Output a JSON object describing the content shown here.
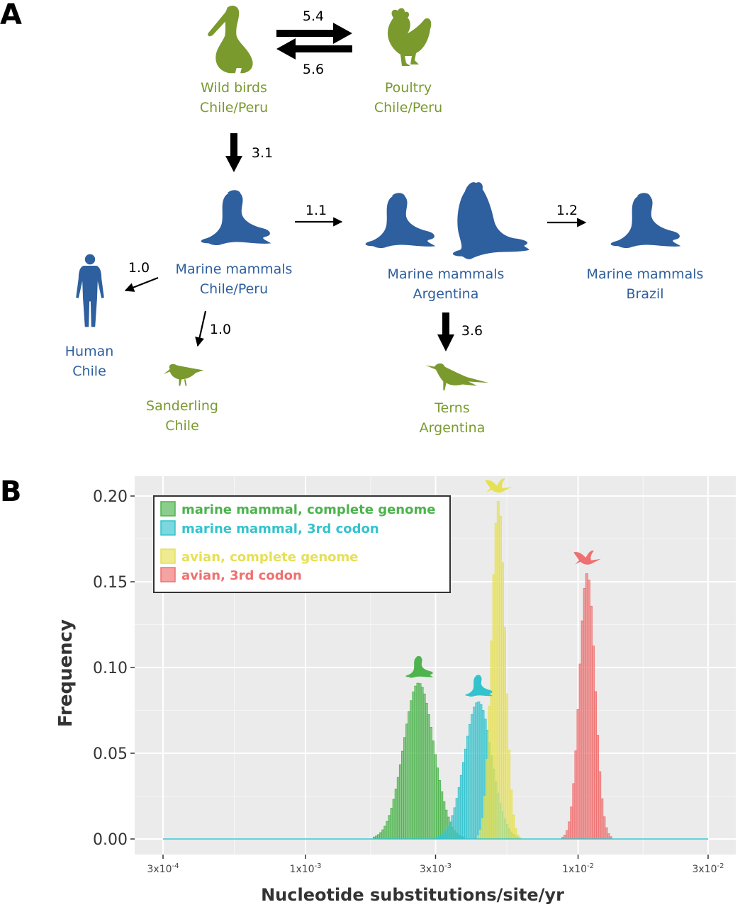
{
  "panel_a": {
    "label": "A",
    "nodes": [
      {
        "id": "wild_birds",
        "line1": "Wild birds",
        "line2": "Chile/Peru",
        "color": "#7a9a2e",
        "icon": "pelican-icon"
      },
      {
        "id": "poultry",
        "line1": "Poultry",
        "line2": "Chile/Peru",
        "color": "#7a9a2e",
        "icon": "chicken-icon"
      },
      {
        "id": "mm_chile",
        "line1": "Marine mammals",
        "line2": "Chile/Peru",
        "color": "#2e5f9e",
        "icon": "sea-lion-icon"
      },
      {
        "id": "mm_argentina",
        "line1": "Marine mammals",
        "line2": "Argentina",
        "color": "#2e5f9e",
        "icon": "sea-lion-and-elephant-seal-icon"
      },
      {
        "id": "mm_brazil",
        "line1": "Marine mammals",
        "line2": "Brazil",
        "color": "#2e5f9e",
        "icon": "sea-lion-icon"
      },
      {
        "id": "human",
        "line1": "Human",
        "line2": "Chile",
        "color": "#2e5f9e",
        "icon": "human-icon"
      },
      {
        "id": "sanderling",
        "line1": "Sanderling",
        "line2": "Chile",
        "color": "#7a9a2e",
        "icon": "sanderling-icon"
      },
      {
        "id": "terns",
        "line1": "Terns",
        "line2": "Argentina",
        "color": "#7a9a2e",
        "icon": "tern-icon"
      }
    ],
    "edges": [
      {
        "from": "wild_birds",
        "to": "poultry",
        "rate": "5.4"
      },
      {
        "from": "poultry",
        "to": "wild_birds",
        "rate": "5.6"
      },
      {
        "from": "wild_birds",
        "to": "mm_chile",
        "rate": "3.1"
      },
      {
        "from": "mm_chile",
        "to": "mm_argentina",
        "rate": "1.1"
      },
      {
        "from": "mm_argentina",
        "to": "mm_brazil",
        "rate": "1.2"
      },
      {
        "from": "mm_chile",
        "to": "human",
        "rate": "1.0"
      },
      {
        "from": "mm_chile",
        "to": "sanderling",
        "rate": "1.0"
      },
      {
        "from": "mm_argentina",
        "to": "terns",
        "rate": "3.6"
      }
    ]
  },
  "panel_b": {
    "label": "B",
    "chart_data": {
      "type": "histogram",
      "xlabel": "Nucleotide substitutions/site/yr",
      "ylabel": "Frequency",
      "x_scale": "log10",
      "xlim": [
        0.0003,
        0.03
      ],
      "ylim": [
        0,
        0.21
      ],
      "x_ticks": [
        {
          "base": "3x10",
          "exp": "-4",
          "value": 0.0003
        },
        {
          "base": "1x10",
          "exp": "-3",
          "value": 0.001
        },
        {
          "base": "3x10",
          "exp": "-3",
          "value": 0.003
        },
        {
          "base": "1x10",
          "exp": "-2",
          "value": 0.01
        },
        {
          "base": "3x10",
          "exp": "-2",
          "value": 0.03
        }
      ],
      "y_ticks": [
        "0.00",
        "0.05",
        "0.10",
        "0.15",
        "0.20"
      ],
      "y_tick_values": [
        0,
        0.05,
        0.1,
        0.15,
        0.2
      ],
      "grid": true,
      "legend_position": "top-left",
      "background": "#ebebeb",
      "series": [
        {
          "name": "marine mammal, complete genome",
          "color": "#4db34d",
          "peak_x": 0.0026,
          "peak_y": 0.091,
          "log_sd": 0.055,
          "icon": "sea-lion-icon"
        },
        {
          "name": "marine mammal, 3rd codon",
          "color": "#33c3cc",
          "peak_x": 0.0043,
          "peak_y": 0.08,
          "log_sd": 0.05,
          "icon": "sea-lion-icon"
        },
        {
          "name": "avian, complete genome",
          "color": "#e6e055",
          "peak_x": 0.0051,
          "peak_y": 0.197,
          "log_sd": 0.024,
          "icon": "flying-bird-icon"
        },
        {
          "name": "avian, 3rd codon",
          "color": "#ee7070",
          "peak_x": 0.0108,
          "peak_y": 0.155,
          "log_sd": 0.028,
          "icon": "flying-bird-icon"
        }
      ]
    }
  }
}
